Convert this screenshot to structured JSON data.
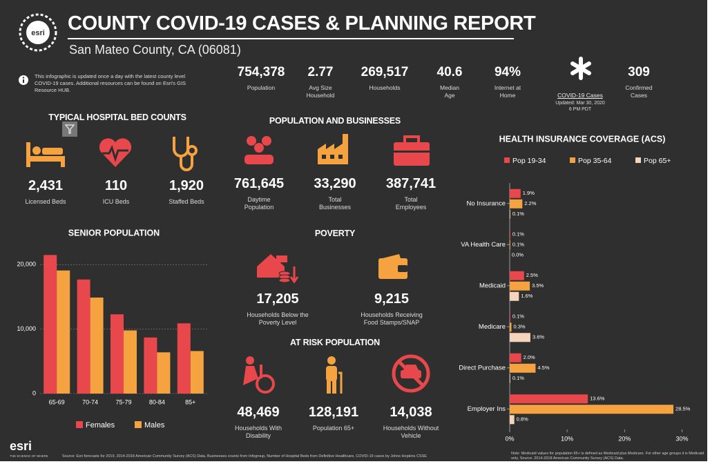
{
  "header": {
    "title": "COUNTY COVID-19 CASES & PLANNING REPORT",
    "subtitle": "San Mateo County, CA (06081)",
    "info": "This infographic is updated once a day with the latest county level COVID-19 cases. Additional resources can be found on Esri's GIS Resource HUB."
  },
  "stats": [
    {
      "value": "754,378",
      "label": "Population"
    },
    {
      "value": "2.77",
      "label": "Avg Size\nHousehold"
    },
    {
      "value": "269,517",
      "label": "Households"
    },
    {
      "value": "40.6",
      "label": "Median\nAge"
    },
    {
      "value": "94%",
      "label": "Internet at\nHome"
    }
  ],
  "covid": {
    "link": "COVID-19 Cases",
    "updated": "Updated: Mar 30, 2020\n6 PM PDT",
    "value": "309",
    "label": "Confirmed\nCases"
  },
  "hospital": {
    "title": "TYPICAL HOSPITAL BED COUNTS",
    "items": [
      {
        "value": "2,431",
        "label": "Licensed Beds"
      },
      {
        "value": "110",
        "label": "ICU Beds"
      },
      {
        "value": "1,920",
        "label": "Staffed Beds"
      }
    ]
  },
  "business": {
    "title": "POPULATION AND BUSINESSES",
    "items": [
      {
        "value": "761,645",
        "label": "Daytime\nPopulation"
      },
      {
        "value": "33,290",
        "label": "Total\nBusinesses"
      },
      {
        "value": "387,741",
        "label": "Total\nEmployees"
      }
    ]
  },
  "poverty": {
    "title": "POVERTY",
    "items": [
      {
        "value": "17,205",
        "label": "Households Below the\nPoverty Level"
      },
      {
        "value": "9,215",
        "label": "Households Receiving\nFood Stamps/SNAP"
      }
    ]
  },
  "risk": {
    "title": "AT RISK POPULATION",
    "items": [
      {
        "value": "48,469",
        "label": "Households With\nDisability"
      },
      {
        "value": "128,191",
        "label": "Population 65+"
      },
      {
        "value": "14,038",
        "label": "Households Without\nVehicle"
      }
    ]
  },
  "chart_data": [
    {
      "type": "bar",
      "title": "SENIOR POPULATION",
      "categories": [
        "65-69",
        "70-74",
        "75-79",
        "80-84",
        "85+"
      ],
      "series": [
        {
          "name": "Females",
          "color": "#e8474c",
          "values": [
            21500,
            17700,
            12300,
            8700,
            10900
          ]
        },
        {
          "name": "Males",
          "color": "#f4a340",
          "values": [
            19100,
            14900,
            9800,
            6400,
            6600
          ]
        }
      ],
      "ylim": [
        0,
        22500
      ],
      "yticks": [
        0,
        {
          "value": 10000,
          "label": "10,000"
        },
        {
          "value": 20000,
          "label": "20,000"
        }
      ],
      "grid": true,
      "legend": "bottom"
    },
    {
      "type": "bar",
      "orientation": "horizontal",
      "title": "HEALTH INSURANCE COVERAGE (ACS)",
      "categories": [
        "No Insurance",
        "VA Health Care",
        "Medicaid",
        "Medicare",
        "Direct Purchase",
        "Employer Ins"
      ],
      "series": [
        {
          "name": "Pop 19-34",
          "color": "#e8474c",
          "values": [
            1.9,
            0.1,
            2.5,
            0.1,
            2.0,
            13.6
          ],
          "value_labels": [
            "1.9%",
            "0.1%",
            "2.5%",
            "0.1%",
            "2.0%",
            "13.6%"
          ]
        },
        {
          "name": "Pop 35-64",
          "color": "#f4a340",
          "values": [
            2.2,
            0.1,
            3.5,
            0.3,
            4.5,
            28.5
          ],
          "value_labels": [
            "2.2%",
            "0.1%",
            "3.5%",
            "0.3%",
            "4.5%",
            "28.5%"
          ]
        },
        {
          "name": "Pop 65+",
          "color": "#f6d4bb",
          "values": [
            0.1,
            0.0,
            1.6,
            3.6,
            0.1,
            0.8
          ],
          "value_labels": [
            "0.1%",
            "0.0%",
            "1.6%",
            "3.6%",
            "0.1%",
            "0.8%"
          ]
        }
      ],
      "xlim": [
        0,
        31.5
      ],
      "xticks": [
        {
          "value": 0,
          "label": "0%"
        },
        {
          "value": 10,
          "label": "10%"
        },
        {
          "value": 20,
          "label": "20%"
        },
        {
          "value": 30,
          "label": "30%"
        }
      ],
      "legend": "top"
    }
  ],
  "footer": {
    "logo": "esri",
    "tagline": "THE SCIENCE OF WHERE",
    "source": "Source: Esri forecasts for 2019, 2014-2018 American Community Survey (ACS) Data, Businesses counts from Infogroup, Number of Hospital Beds from Definitive Healthcare, COVID-19 cases by Johns Hopkins CSSE",
    "note": "Note: Medicaid values for population 65+ is defined as Medicaid plus Medicare. For other age groups it is Medicaid only. Source: 2014-2018 American Community Survey (ACS) Data."
  }
}
